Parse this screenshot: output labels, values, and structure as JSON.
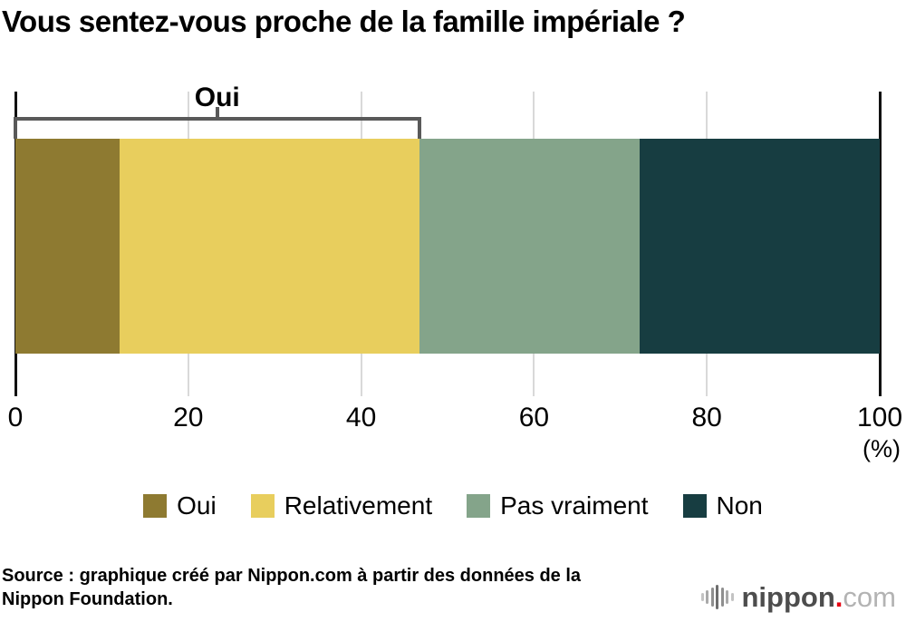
{
  "title": "Vous sentez-vous proche de la famille impériale ?",
  "chart_data": {
    "type": "bar",
    "stacked": true,
    "orientation": "horizontal",
    "title": "Vous sentez-vous proche de la famille impériale ?",
    "categories": [
      "Oui",
      "Relativement",
      "Pas vraiment",
      "Non"
    ],
    "values": [
      12.1,
      34.6,
      25.5,
      27.8
    ],
    "colors": [
      "#8e7a31",
      "#e8ce5d",
      "#84a48a",
      "#173d41"
    ],
    "xlim": [
      0,
      100
    ],
    "ticks": [
      0,
      20,
      40,
      60,
      80,
      100
    ],
    "unit_label": "(%)",
    "grid": true,
    "legend_position": "bottom",
    "bracket": {
      "label": "Oui",
      "covers": [
        "Oui",
        "Relativement"
      ],
      "from_pct": 0,
      "to_pct": 46.7
    }
  },
  "source": {
    "line1": "Source : graphique créé par Nippon.com à partir des données de la",
    "line2": "Nippon Foundation."
  },
  "logo": {
    "icon": "audio-wave-icon",
    "brand": "nippon",
    "dot": ".",
    "tld": "com"
  }
}
